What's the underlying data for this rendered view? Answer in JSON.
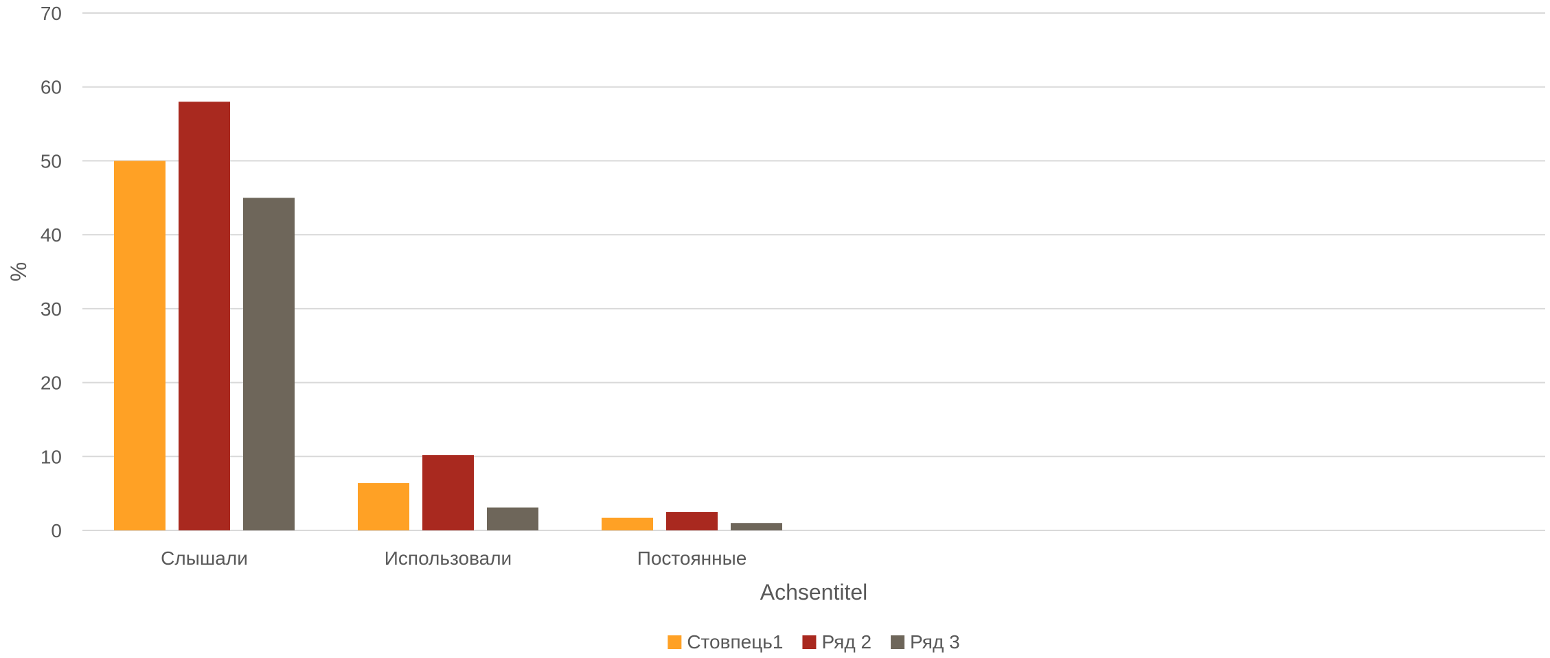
{
  "chart_data": {
    "type": "bar",
    "title": "",
    "xlabel": "Achsentitel",
    "ylabel": "%",
    "ylim": [
      0,
      70
    ],
    "yticks": [
      0,
      10,
      20,
      30,
      40,
      50,
      60,
      70
    ],
    "grid": true,
    "legend_position": "bottom",
    "categories": [
      "Слышали",
      "Использовали",
      "Постоянные",
      "",
      "",
      ""
    ],
    "series": [
      {
        "name": "Стовпець1",
        "color": "#FFA125",
        "values": [
          50,
          6.4,
          1.7,
          null,
          null,
          null
        ]
      },
      {
        "name": "Ряд 2",
        "color": "#A9291F",
        "values": [
          58,
          10.2,
          2.5,
          null,
          null,
          null
        ]
      },
      {
        "name": "Ряд 3",
        "color": "#6E665A",
        "values": [
          45,
          3.1,
          1.0,
          null,
          null,
          null
        ]
      }
    ]
  }
}
